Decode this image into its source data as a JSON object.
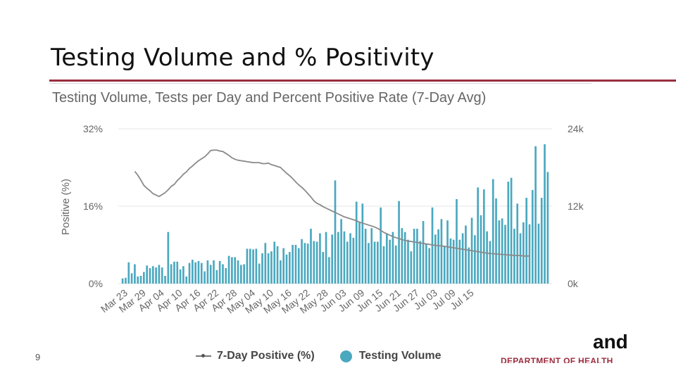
{
  "slide": {
    "title": "Testing Volume and % Positivity",
    "page_number": "9",
    "logo_word": "and",
    "logo_sub": "DEPARTMENT OF HEALTH"
  },
  "colors": {
    "accent": "#9b2d3f",
    "bar": "#4aa8bf",
    "line": "#8a8a8a",
    "grid": "#e6e6e6"
  },
  "chart_data": {
    "type": "bar",
    "title": "Testing Volume, Tests per Day and Percent Positive Rate (7-Day Avg)",
    "ylabel_left": "Positive (%)",
    "y_left_ticks": [
      "32%",
      "16%",
      "0%"
    ],
    "y_left_range": [
      0,
      32
    ],
    "y_right_ticks": [
      "24k",
      "12k",
      "0k"
    ],
    "y_right_range": [
      0,
      24000
    ],
    "x_tick_labels": [
      "Mar 23",
      "Mar 29",
      "Apr 04",
      "Apr 10",
      "Apr 16",
      "Apr 22",
      "Apr 28",
      "May 04",
      "May 10",
      "May 16",
      "May 22",
      "May 28",
      "Jun 03",
      "Jun 09",
      "Jun 15",
      "Jun 21",
      "Jun 27",
      "Jul 03",
      "Jul 09",
      "Jul 15"
    ],
    "x_tick_day_index": [
      0,
      6,
      12,
      18,
      24,
      30,
      36,
      42,
      48,
      54,
      60,
      66,
      72,
      78,
      84,
      90,
      96,
      102,
      108,
      114
    ],
    "legend": [
      "7-Day Positive (%)",
      "Testing Volume"
    ],
    "series": [
      {
        "name": "Testing Volume",
        "start_day_index": 0,
        "values": [
          800,
          900,
          3300,
          1600,
          3000,
          1100,
          1200,
          1800,
          2800,
          2400,
          2700,
          2500,
          2900,
          2500,
          1200,
          8000,
          3000,
          3400,
          3400,
          2200,
          2700,
          1100,
          3200,
          3700,
          3300,
          3500,
          3200,
          1900,
          3600,
          2900,
          3600,
          2100,
          3500,
          3000,
          2400,
          4300,
          4100,
          4100,
          3600,
          2900,
          3000,
          5400,
          5400,
          5300,
          5400,
          3100,
          4700,
          6300,
          4700,
          5000,
          6500,
          5800,
          3600,
          5500,
          4500,
          4900,
          6000,
          6000,
          5500,
          6900,
          6300,
          6200,
          8500,
          6600,
          6500,
          7800,
          4900,
          8000,
          4100,
          7600,
          16000,
          8000,
          10000,
          8100,
          6500,
          7800,
          7100,
          12700,
          9500,
          12400,
          8500,
          6300,
          8600,
          6500,
          6500,
          11800,
          5800,
          7800,
          6800,
          8000,
          5900,
          12800,
          8600,
          8000,
          6800,
          5000,
          8500,
          8500,
          6600,
          9700,
          6200,
          5500,
          11800,
          7600,
          8400,
          10000,
          5800,
          9800,
          7000,
          6800,
          13100,
          6800,
          7800,
          9000,
          5600,
          10200,
          7500,
          14900,
          10600,
          14600,
          8100,
          6600,
          16200,
          13200,
          9800,
          10100,
          9100,
          15800,
          16400,
          8500,
          12400,
          7800,
          9500,
          13300,
          9200,
          14500,
          21300,
          9300,
          13300,
          21600,
          17300
        ]
      },
      {
        "name": "7-Day Positive (%)",
        "start_day_index": 4,
        "values": [
          23.2,
          22.4,
          21.4,
          20.3,
          19.7,
          19.2,
          18.6,
          18.3,
          18.0,
          18.4,
          18.8,
          19.4,
          20.1,
          20.5,
          21.3,
          21.9,
          22.6,
          23.1,
          23.8,
          24.3,
          24.9,
          25.4,
          25.8,
          26.2,
          26.8,
          27.5,
          27.6,
          27.6,
          27.4,
          27.3,
          26.9,
          26.5,
          26.0,
          25.7,
          25.5,
          25.4,
          25.3,
          25.2,
          25.1,
          25.0,
          25.0,
          25.0,
          24.8,
          24.8,
          24.9,
          24.6,
          24.4,
          24.2,
          24.0,
          23.4,
          22.8,
          22.3,
          21.7,
          21.0,
          20.4,
          19.9,
          19.3,
          18.6,
          17.9,
          17.1,
          16.6,
          16.3,
          15.9,
          15.6,
          15.3,
          15.0,
          14.7,
          14.4,
          14.1,
          13.8,
          13.6,
          13.4,
          13.2,
          13.0,
          12.7,
          12.5,
          12.3,
          12.1,
          11.9,
          11.7,
          11.4,
          11.0,
          10.6,
          10.3,
          10.0,
          9.7,
          9.5,
          9.3,
          9.1,
          8.9,
          8.8,
          8.7,
          8.6,
          8.5,
          8.4,
          8.3,
          8.2,
          8.1,
          8.0,
          7.9,
          7.8,
          7.8,
          7.7,
          7.6,
          7.5,
          7.4,
          7.3,
          7.2,
          7.1,
          7.0,
          6.9,
          6.8,
          6.7,
          6.6,
          6.5,
          6.4,
          6.3,
          6.2,
          6.2,
          6.1,
          6.1,
          6.0,
          6.0,
          5.9,
          5.9,
          5.8,
          5.8,
          5.8,
          5.7,
          5.7,
          5.7
        ]
      }
    ]
  }
}
